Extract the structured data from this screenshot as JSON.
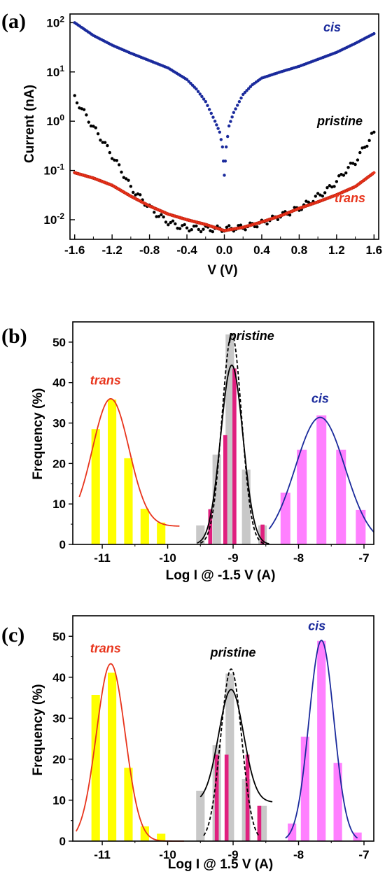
{
  "colors": {
    "cis": "#1a2a9c",
    "pristine": "#000000",
    "trans": "#e8341c",
    "yellow_bar": "#ffff00",
    "pink_bar": "#ff80ff",
    "gray_bar": "#c8c8c8",
    "magenta_bar": "#e0207f"
  },
  "chart_data": [
    {
      "panel": "(a)",
      "type": "scatter",
      "xlabel": "V (V)",
      "ylabel": "Current (nA)",
      "xlim": [
        -1.65,
        1.65
      ],
      "ylim": [
        0.004,
        150
      ],
      "yscale": "log",
      "xticks": [
        "-1.6",
        "-1.2",
        "-0.8",
        "-0.4",
        "0.0",
        "0.4",
        "0.8",
        "1.2",
        "1.6"
      ],
      "yticks": [
        {
          "base": "10",
          "exp": "2"
        },
        {
          "base": "10",
          "exp": "1"
        },
        {
          "base": "10",
          "exp": "0"
        },
        {
          "base": "10",
          "exp": "-1"
        },
        {
          "base": "10",
          "exp": "-2"
        }
      ],
      "series": [
        {
          "name": "cis",
          "color_key": "cis",
          "points": [
            [
              -1.6,
              100
            ],
            [
              -1.4,
              55
            ],
            [
              -1.2,
              35
            ],
            [
              -1.0,
              24
            ],
            [
              -0.8,
              17
            ],
            [
              -0.6,
              12
            ],
            [
              -0.4,
              7
            ],
            [
              -0.3,
              4.5
            ],
            [
              -0.2,
              2.5
            ],
            [
              -0.1,
              1.0
            ],
            [
              -0.05,
              0.6
            ],
            [
              -0.02,
              0.3
            ],
            [
              0.0,
              0.08
            ],
            [
              0.02,
              0.3
            ],
            [
              0.05,
              0.8
            ],
            [
              0.1,
              1.5
            ],
            [
              0.2,
              3.5
            ],
            [
              0.3,
              5.5
            ],
            [
              0.4,
              7.5
            ],
            [
              0.6,
              10
            ],
            [
              0.8,
              13
            ],
            [
              1.0,
              18
            ],
            [
              1.2,
              25
            ],
            [
              1.4,
              38
            ],
            [
              1.6,
              60
            ]
          ]
        },
        {
          "name": "pristine",
          "color_key": "pristine",
          "points": [
            [
              -1.6,
              3.0
            ],
            [
              -1.5,
              1.5
            ],
            [
              -1.4,
              0.75
            ],
            [
              -1.3,
              0.4
            ],
            [
              -1.2,
              0.2
            ],
            [
              -1.1,
              0.1
            ],
            [
              -1.0,
              0.045
            ],
            [
              -0.9,
              0.028
            ],
            [
              -0.8,
              0.018
            ],
            [
              -0.7,
              0.012
            ],
            [
              -0.6,
              0.009
            ],
            [
              -0.5,
              0.0075
            ],
            [
              -0.4,
              0.0068
            ],
            [
              -0.2,
              0.0065
            ],
            [
              0.0,
              0.0065
            ],
            [
              0.2,
              0.007
            ],
            [
              0.4,
              0.0085
            ],
            [
              0.6,
              0.012
            ],
            [
              0.8,
              0.017
            ],
            [
              0.9,
              0.022
            ],
            [
              1.0,
              0.03
            ],
            [
              1.1,
              0.04
            ],
            [
              1.2,
              0.06
            ],
            [
              1.3,
              0.1
            ],
            [
              1.4,
              0.15
            ],
            [
              1.5,
              0.3
            ],
            [
              1.6,
              0.6
            ]
          ]
        },
        {
          "name": "trans",
          "color_key": "trans",
          "points": [
            [
              -1.6,
              0.09
            ],
            [
              -1.4,
              0.07
            ],
            [
              -1.2,
              0.05
            ],
            [
              -1.0,
              0.03
            ],
            [
              -0.8,
              0.019
            ],
            [
              -0.6,
              0.013
            ],
            [
              -0.4,
              0.01
            ],
            [
              -0.2,
              0.008
            ],
            [
              0.0,
              0.006
            ],
            [
              0.2,
              0.007
            ],
            [
              0.4,
              0.009
            ],
            [
              0.6,
              0.012
            ],
            [
              0.8,
              0.017
            ],
            [
              1.0,
              0.023
            ],
            [
              1.2,
              0.032
            ],
            [
              1.4,
              0.047
            ],
            [
              1.6,
              0.09
            ]
          ]
        }
      ]
    },
    {
      "panel": "(b)",
      "type": "bar",
      "xlabel": "Log I @ -1.5 V (A)",
      "ylabel": "Frequency (%)",
      "xlim": [
        -11.45,
        -6.85
      ],
      "ylim": [
        0,
        55
      ],
      "xticks": [
        "-11",
        "-10",
        "-9",
        "-8",
        "-7"
      ],
      "yticks": [
        "0",
        "10",
        "20",
        "30",
        "40",
        "50"
      ],
      "series": [
        {
          "name": "trans",
          "color_key": "yellow_bar",
          "width": 0.13,
          "bars": [
            [
              -11.1,
              28.5
            ],
            [
              -10.85,
              35.8
            ],
            [
              -10.6,
              21.3
            ],
            [
              -10.35,
              8.8
            ],
            [
              -10.1,
              5.4
            ]
          ]
        },
        {
          "name": "cis",
          "color_key": "pink_bar",
          "width": 0.15,
          "bars": [
            [
              -8.2,
              12.8
            ],
            [
              -7.95,
              23.4
            ],
            [
              -7.65,
              31.9
            ],
            [
              -7.35,
              23.4
            ],
            [
              -7.05,
              8.5
            ]
          ]
        },
        {
          "name": "pristine",
          "color_key": "gray_bar",
          "width": 0.13,
          "bars": [
            [
              -9.5,
              4.7
            ],
            [
              -9.25,
              22.2
            ],
            [
              -9.05,
              51.9
            ],
            [
              -8.8,
              18.5
            ],
            [
              -8.55,
              4.7
            ]
          ]
        },
        {
          "name": "pristine",
          "color_key": "magenta_bar",
          "width": 0.06,
          "bars": [
            [
              -9.35,
              8.7
            ],
            [
              -9.12,
              27.0
            ],
            [
              -8.98,
              43.5
            ],
            [
              -8.55,
              4.9
            ]
          ]
        }
      ],
      "fits": [
        {
          "name": "trans",
          "color_key": "trans",
          "dash": false,
          "mu": -10.87,
          "sigma": 0.28,
          "amp": 36.0,
          "base": 4.5,
          "range": [
            -11.35,
            -9.82
          ]
        },
        {
          "name": "cis",
          "color_key": "cis",
          "dash": false,
          "mu": -7.67,
          "sigma": 0.38,
          "amp": 31.4,
          "base": 0,
          "range": [
            -8.45,
            -6.85
          ]
        },
        {
          "name": "pristine",
          "color_key": "pristine",
          "dash": false,
          "mu": -9.02,
          "sigma": 0.17,
          "amp": 44.3,
          "base": 0,
          "range": [
            -9.55,
            -8.45
          ]
        },
        {
          "name": "pristine",
          "color_key": "pristine",
          "dash": true,
          "mu": -9.02,
          "sigma": 0.15,
          "amp": 52.0,
          "base": 0,
          "range": [
            -9.5,
            -8.5
          ]
        }
      ],
      "labels": [
        {
          "text": "trans",
          "color_key": "trans",
          "x": -10.95,
          "y": 39.5
        },
        {
          "text": "pristine",
          "color_key": "pristine",
          "x": -8.72,
          "y": 50.5
        },
        {
          "text": "cis",
          "color_key": "cis",
          "x": -7.67,
          "y": 35
        }
      ]
    },
    {
      "panel": "(c)",
      "type": "bar",
      "xlabel": "Log I @ 1.5 V (A)",
      "ylabel": "Frequency (%)",
      "xlim": [
        -11.45,
        -6.85
      ],
      "ylim": [
        0,
        55
      ],
      "xticks": [
        "-11",
        "-10",
        "-9",
        "-8",
        "-7"
      ],
      "yticks": [
        "0",
        "10",
        "20",
        "30",
        "40",
        "50"
      ],
      "series": [
        {
          "name": "trans",
          "color_key": "yellow_bar",
          "width": 0.13,
          "bars": [
            [
              -11.1,
              35.7
            ],
            [
              -10.85,
              41.1
            ],
            [
              -10.6,
              17.9
            ],
            [
              -10.35,
              3.6
            ],
            [
              -10.1,
              1.8
            ]
          ]
        },
        {
          "name": "cis",
          "color_key": "pink_bar",
          "width": 0.13,
          "bars": [
            [
              -8.1,
              4.3
            ],
            [
              -7.9,
              25.5
            ],
            [
              -7.65,
              48.9
            ],
            [
              -7.4,
              19.1
            ],
            [
              -7.1,
              2.1
            ]
          ]
        },
        {
          "name": "pristine",
          "color_key": "gray_bar",
          "width": 0.13,
          "bars": [
            [
              -9.5,
              12.3
            ],
            [
              -9.25,
              23.4
            ],
            [
              -9.05,
              40.9
            ],
            [
              -8.8,
              15.2
            ],
            [
              -8.55,
              8.6
            ]
          ]
        },
        {
          "name": "pristine",
          "color_key": "magenta_bar",
          "width": 0.06,
          "bars": [
            [
              -9.25,
              21.1
            ],
            [
              -9.1,
              21.1
            ],
            [
              -8.78,
              21.1
            ],
            [
              -8.6,
              8.6
            ]
          ]
        }
      ],
      "fits": [
        {
          "name": "trans",
          "color_key": "trans",
          "dash": false,
          "mu": -10.87,
          "sigma": 0.22,
          "amp": 43.3,
          "base": 0,
          "range": [
            -11.4,
            -9.75
          ]
        },
        {
          "name": "cis",
          "color_key": "cis",
          "dash": false,
          "mu": -7.65,
          "sigma": 0.19,
          "amp": 49.0,
          "base": 0,
          "range": [
            -8.2,
            -7.1
          ]
        },
        {
          "name": "pristine",
          "color_key": "pristine",
          "dash": false,
          "mu": -9.03,
          "sigma": 0.19,
          "amp": 37.0,
          "base": 9.5,
          "range": [
            -9.5,
            -8.4
          ]
        },
        {
          "name": "pristine",
          "color_key": "pristine",
          "dash": true,
          "mu": -9.03,
          "sigma": 0.16,
          "amp": 42.0,
          "base": 0,
          "range": [
            -9.45,
            -8.6
          ]
        }
      ],
      "labels": [
        {
          "text": "trans",
          "color_key": "trans",
          "x": -10.95,
          "y": 46
        },
        {
          "text": "pristine",
          "color_key": "pristine",
          "x": -9.0,
          "y": 45
        },
        {
          "text": "cis",
          "color_key": "cis",
          "x": -7.72,
          "y": 51.5
        }
      ]
    }
  ]
}
